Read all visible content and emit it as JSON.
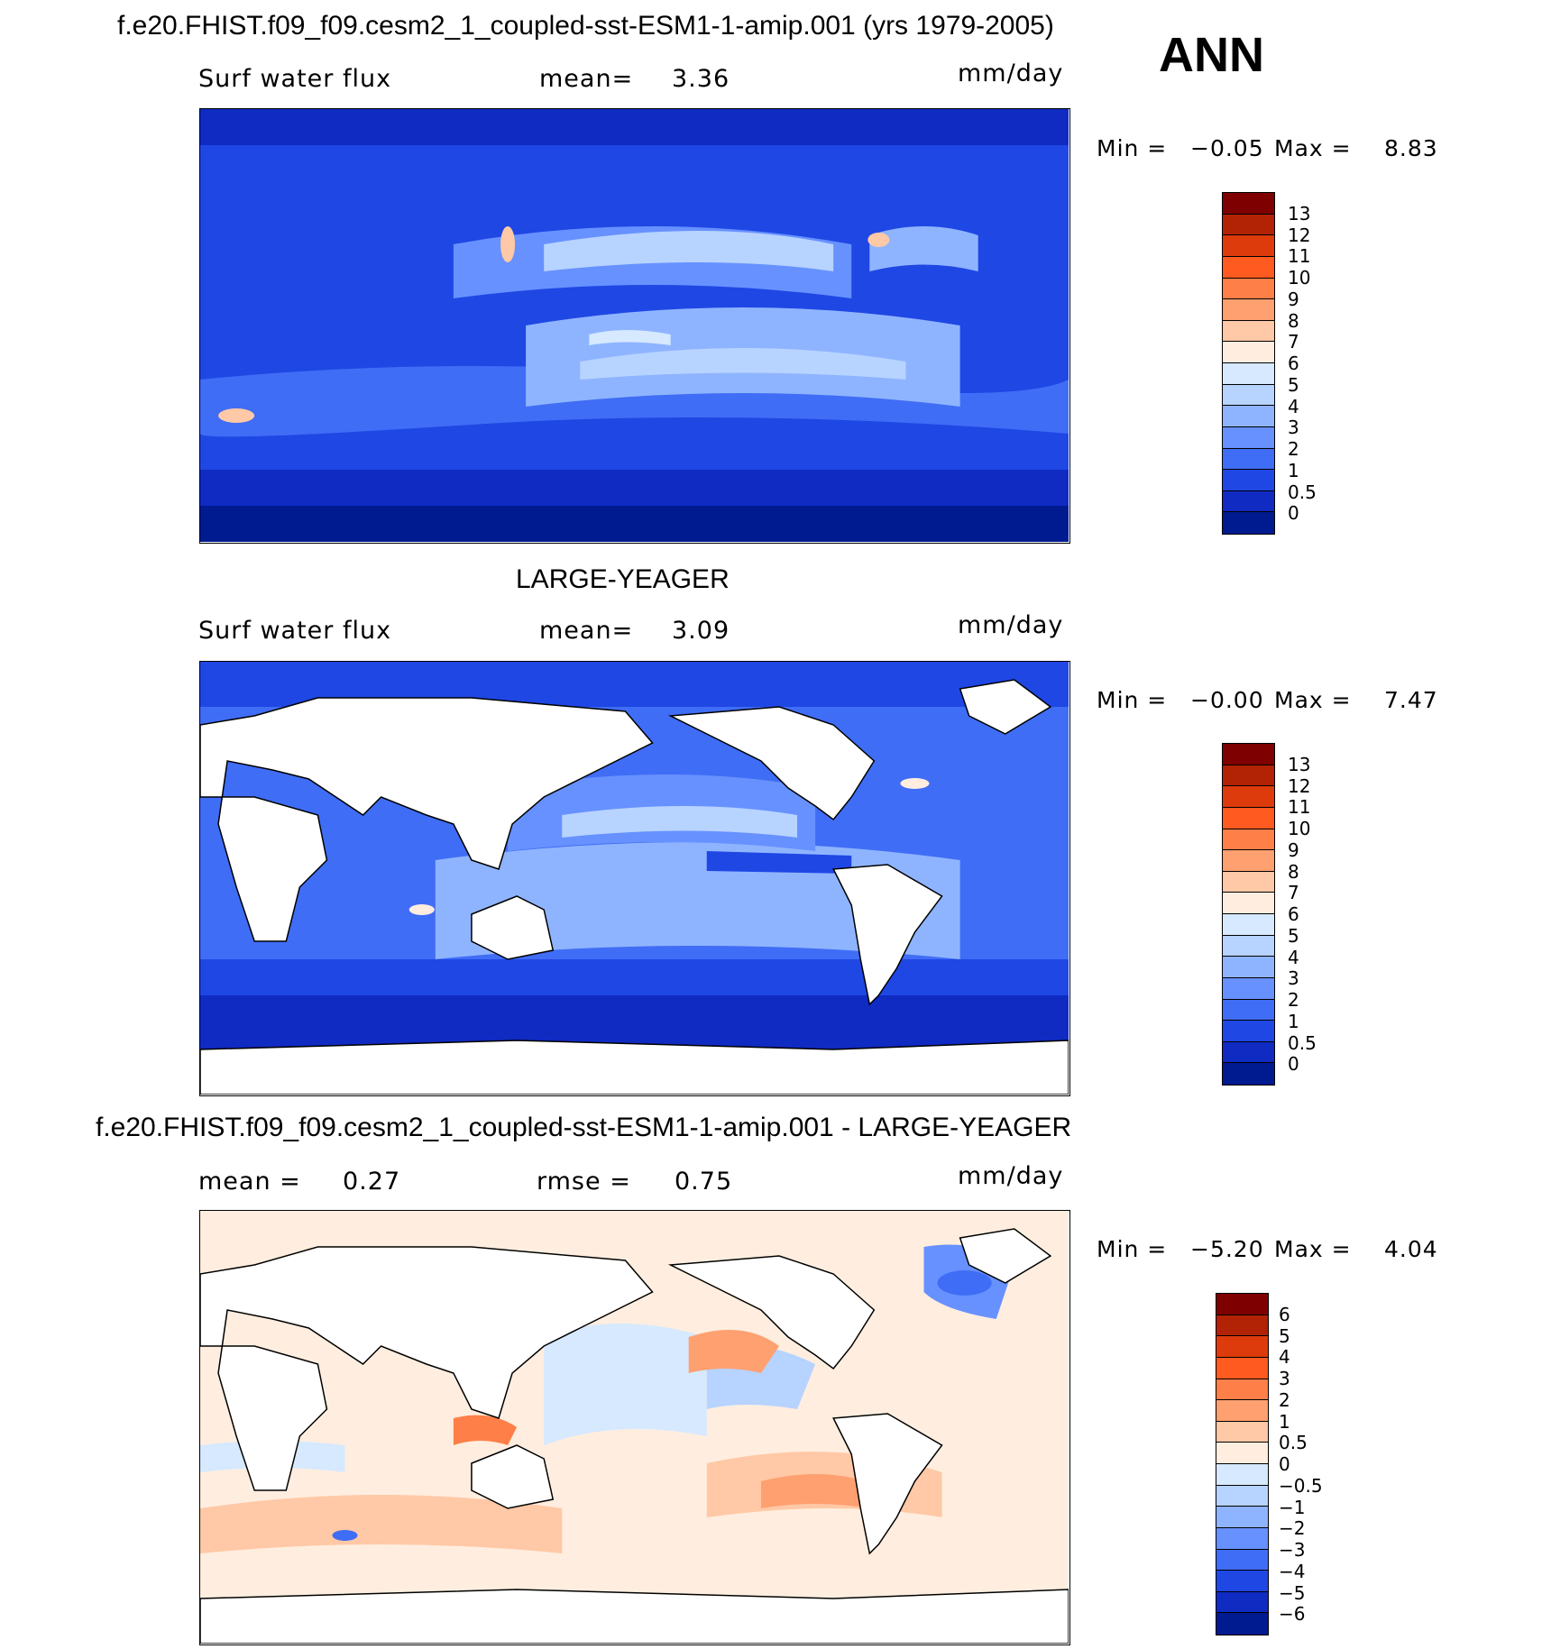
{
  "header": {
    "title": "f.e20.FHIST.f09_f09.cesm2_1_coupled-sst-ESM1-1-amip.001 (yrs 1979-2005)",
    "season": "ANN"
  },
  "panels": [
    {
      "title": "",
      "variable": "Surf water flux",
      "left_stat": "",
      "mean_label": "mean=",
      "mean_value": "3.36",
      "units": "mm/day",
      "min_label": "Min =",
      "min_value": "−0.05",
      "max_label": "Max =",
      "max_value": "8.83",
      "colorbar": {
        "colors": [
          "#7f0000",
          "#b22205",
          "#dd3b0c",
          "#ff5a1f",
          "#ff7f48",
          "#ffa070",
          "#ffc8a6",
          "#ffeedf",
          "#d6e9ff",
          "#b7d3ff",
          "#8fb4ff",
          "#6791ff",
          "#3f6df5",
          "#1f47e4",
          "#0f2bc2",
          "#001a8f"
        ],
        "labels": [
          "13",
          "12",
          "11",
          "10",
          "9",
          "8",
          "7",
          "6",
          "5",
          "4",
          "3",
          "2",
          "1",
          "0.5",
          "0"
        ]
      }
    },
    {
      "title": "LARGE-YEAGER",
      "variable": "Surf water flux",
      "left_stat": "",
      "mean_label": "mean=",
      "mean_value": "3.09",
      "units": "mm/day",
      "min_label": "Min =",
      "min_value": "−0.00",
      "max_label": "Max =",
      "max_value": "7.47",
      "colorbar": {
        "colors": [
          "#7f0000",
          "#b22205",
          "#dd3b0c",
          "#ff5a1f",
          "#ff7f48",
          "#ffa070",
          "#ffc8a6",
          "#ffeedf",
          "#d6e9ff",
          "#b7d3ff",
          "#8fb4ff",
          "#6791ff",
          "#3f6df5",
          "#1f47e4",
          "#0f2bc2",
          "#001a8f"
        ],
        "labels": [
          "13",
          "12",
          "11",
          "10",
          "9",
          "8",
          "7",
          "6",
          "5",
          "4",
          "3",
          "2",
          "1",
          "0.5",
          "0"
        ]
      }
    },
    {
      "title": "f.e20.FHIST.f09_f09.cesm2_1_coupled-sst-ESM1-1-amip.001 - LARGE-YEAGER",
      "variable": "",
      "left_stat": "mean =",
      "left_value": "0.27",
      "mean_label": "rmse =",
      "mean_value": "0.75",
      "units": "mm/day",
      "min_label": "Min =",
      "min_value": "−5.20",
      "max_label": "Max =",
      "max_value": "4.04",
      "colorbar": {
        "colors": [
          "#7f0000",
          "#b22205",
          "#dd3b0c",
          "#ff5a1f",
          "#ff7f48",
          "#ffa070",
          "#ffc8a6",
          "#ffeedf",
          "#d6e9ff",
          "#b7d3ff",
          "#8fb4ff",
          "#6791ff",
          "#3f6df5",
          "#1f47e4",
          "#0f2bc2",
          "#001a8f"
        ],
        "labels": [
          "6",
          "5",
          "4",
          "3",
          "2",
          "1",
          "0.5",
          "0",
          "−0.5",
          "−1",
          "−2",
          "−3",
          "−4",
          "−5",
          "−6"
        ]
      }
    }
  ]
}
